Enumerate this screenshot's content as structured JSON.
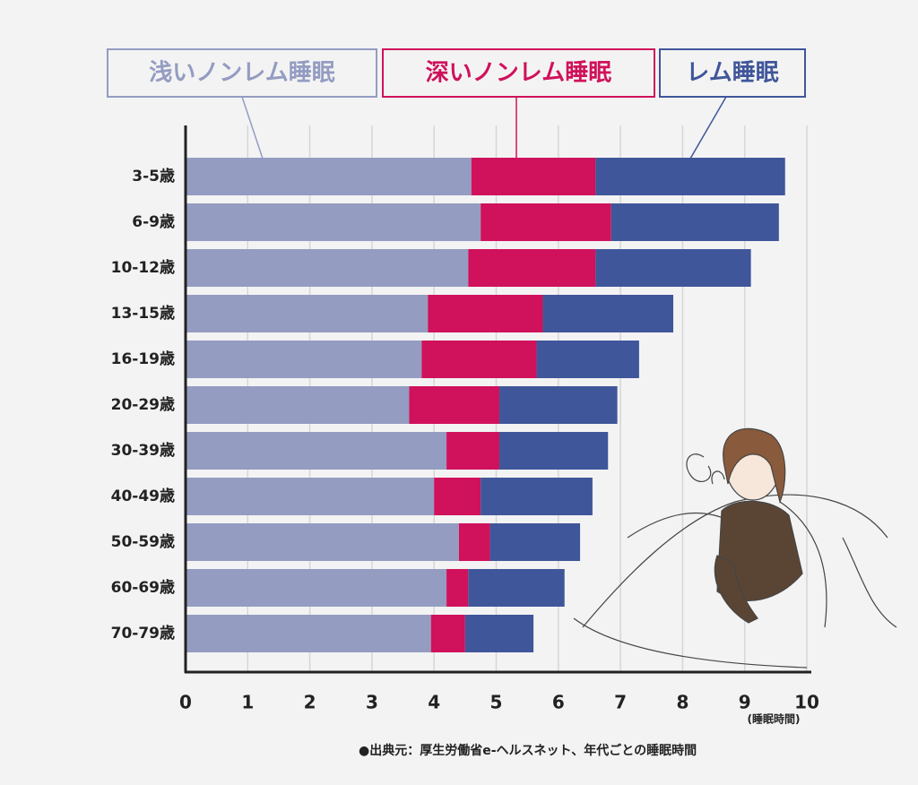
{
  "chart_data": {
    "type": "bar",
    "orientation": "horizontal",
    "stacked": true,
    "categories": [
      "3-5歳",
      "6-9歳",
      "10-12歳",
      "13-15歳",
      "16-19歳",
      "20-29歳",
      "30-39歳",
      "40-49歳",
      "50-59歳",
      "60-69歳",
      "70-79歳"
    ],
    "series": [
      {
        "name": "浅いノンレム睡眠",
        "color": "#949cc2",
        "values": [
          4.6,
          4.75,
          4.55,
          3.9,
          3.8,
          3.6,
          4.2,
          4.0,
          4.4,
          4.2,
          3.95
        ]
      },
      {
        "name": "深いノンレム睡眠",
        "color": "#d0115b",
        "values": [
          2.0,
          2.1,
          2.05,
          1.85,
          1.85,
          1.45,
          0.85,
          0.75,
          0.5,
          0.35,
          0.55
        ]
      },
      {
        "name": "レム睡眠",
        "color": "#40569a",
        "values": [
          3.05,
          2.7,
          2.5,
          2.1,
          1.65,
          1.9,
          1.75,
          1.8,
          1.45,
          1.55,
          1.1
        ]
      }
    ],
    "xlim": [
      0,
      10
    ],
    "xticks": [
      0,
      1,
      2,
      3,
      4,
      5,
      6,
      7,
      8,
      9,
      10
    ],
    "grid": true,
    "x_label": "(睡眠時間)",
    "source": "●出典元：厚生労働省e-ヘルスネット、年代ごとの睡眠時間"
  }
}
